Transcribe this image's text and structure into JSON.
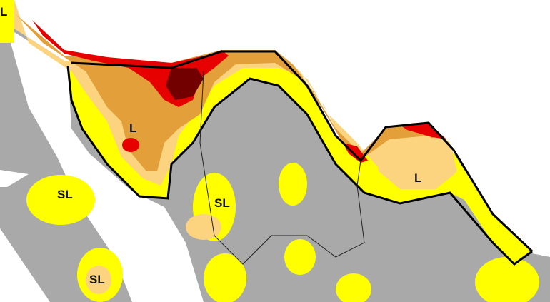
{
  "map": {
    "colors": {
      "land": "#a9a9a9",
      "water": "#ffffff",
      "abnormally_dry": "#ffff00",
      "moderate": "#fcd37f",
      "severe": "#e3a03a",
      "extreme": "#e60000",
      "exceptional": "#730000",
      "boundary": "#000000"
    },
    "labels": [
      {
        "text": "L"
      },
      {
        "text": "L"
      },
      {
        "text": "L"
      },
      {
        "text": "SL"
      },
      {
        "text": "SL"
      },
      {
        "text": "SL"
      }
    ]
  }
}
